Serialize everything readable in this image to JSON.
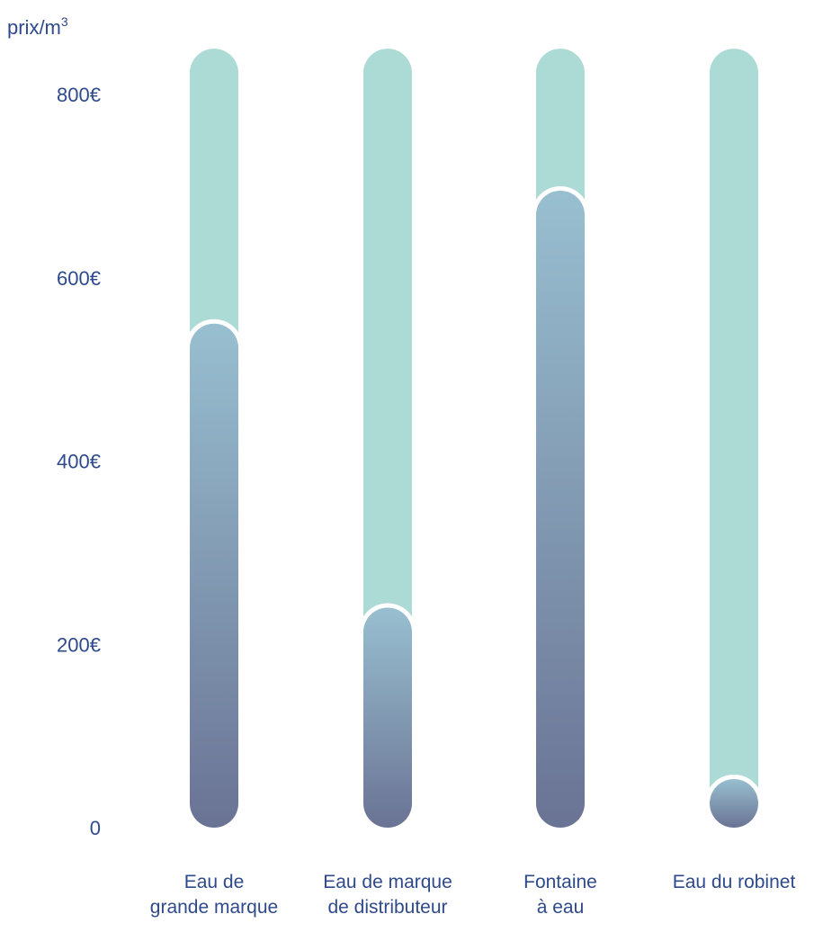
{
  "chart_data": {
    "type": "bar",
    "ylabel": "prix/m",
    "ylabel_sup": "3",
    "ylim": [
      0,
      850
    ],
    "yticks": [
      {
        "value": 0,
        "label": "0"
      },
      {
        "value": 200,
        "label": "200€"
      },
      {
        "value": 400,
        "label": "400€"
      },
      {
        "value": 600,
        "label": "600€"
      },
      {
        "value": 800,
        "label": "800€"
      }
    ],
    "categories": [
      [
        "Eau de",
        "grande marque"
      ],
      [
        "Eau de marque",
        "de distributeur"
      ],
      [
        "Fontaine",
        "à eau"
      ],
      [
        "Eau du robinet"
      ]
    ],
    "values": [
      550,
      240,
      695,
      28
    ],
    "colors": {
      "track": "#acdad4",
      "bar_top": "#98bfd0",
      "bar_bottom": "#6a7394",
      "text": "#2e4a8c"
    }
  }
}
